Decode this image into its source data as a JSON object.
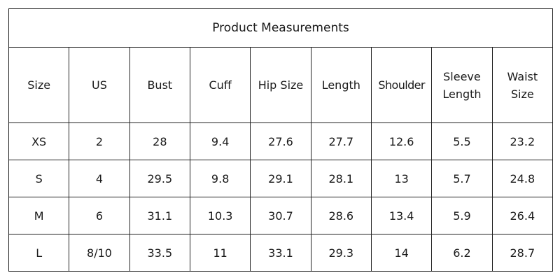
{
  "table": {
    "title": "Product Measurements",
    "header": [
      "Size",
      "US",
      "Bust",
      "Cuff",
      "Hip Size",
      "Length",
      "Shoulder",
      "Sleeve Length",
      "Waist Size"
    ],
    "rows": [
      [
        "XS",
        "2",
        "28",
        "9.4",
        "27.6",
        "27.7",
        "12.6",
        "5.5",
        "23.2"
      ],
      [
        "S",
        "4",
        "29.5",
        "9.8",
        "29.1",
        "28.1",
        "13",
        "5.7",
        "24.8"
      ],
      [
        "M",
        "6",
        "31.1",
        "10.3",
        "30.7",
        "28.6",
        "13.4",
        "5.9",
        "26.4"
      ],
      [
        "L",
        "8/10",
        "33.5",
        "11",
        "33.1",
        "29.3",
        "14",
        "6.2",
        "28.7"
      ]
    ]
  }
}
